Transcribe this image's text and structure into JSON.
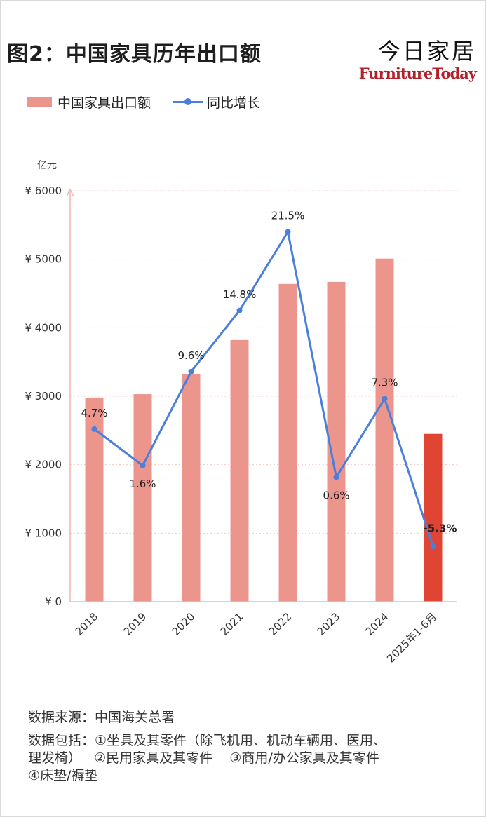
{
  "title": "图2：中国家具历年出口额",
  "brand": {
    "cn": "今日家居",
    "en": "FurnitureToday"
  },
  "legend": {
    "bar": "中国家具出口额",
    "line": "同比增长"
  },
  "colors": {
    "bar": "#ec958c",
    "bar_highlight": "#e04433",
    "line": "#4a7fdc"
  },
  "chart_data": {
    "type": "bar",
    "title": "图2：中国家具历年出口额",
    "ylabel": "亿元",
    "ylim": [
      0,
      6000
    ],
    "y_ticks": [
      "¥ 0",
      "¥ 1000",
      "¥ 2000",
      "¥ 3000",
      "¥ 4000",
      "¥ 5000",
      "¥ 6000"
    ],
    "y_tick_values": [
      0,
      1000,
      2000,
      3000,
      4000,
      5000,
      6000
    ],
    "categories": [
      "2018",
      "2019",
      "2020",
      "2021",
      "2022",
      "2023",
      "2024",
      "2025年1-6月"
    ],
    "series": [
      {
        "name": "中国家具出口额",
        "type": "bar",
        "values": [
          2980,
          3030,
          3320,
          3820,
          4640,
          4670,
          5010,
          2450
        ]
      },
      {
        "name": "同比增长",
        "type": "line",
        "labels": [
          "4.7%",
          "1.6%",
          "9.6%",
          "14.8%",
          "21.5%",
          "0.6%",
          "7.3%",
          "-5.3%"
        ],
        "values": [
          4.7,
          1.6,
          9.6,
          14.8,
          21.5,
          0.6,
          7.3,
          -5.3
        ]
      }
    ],
    "grid": true,
    "legend_position": "top-left",
    "highlight_category": "2025年1-6月"
  },
  "source": "数据来源：中国海关总署",
  "includes": {
    "line1": "数据包括：①坐具及其零件（除飞机用、机动车辆用、医用、",
    "line2": "理发椅）   ②民用家具及其零件    ③商用/办公家具及其零件",
    "line3": "④床垫/褥垫"
  }
}
